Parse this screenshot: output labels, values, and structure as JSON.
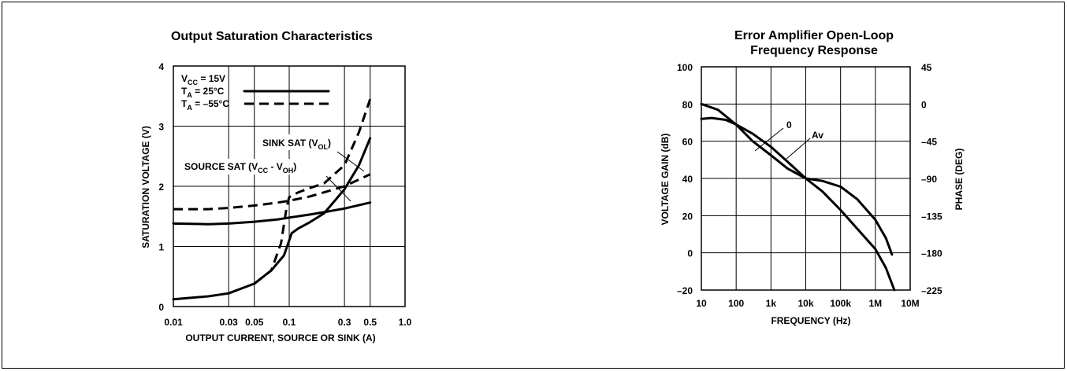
{
  "chart_data": [
    {
      "type": "line",
      "title": "Output Saturation Characteristics",
      "xlabel": "OUTPUT CURRENT, SOURCE OR SINK (A)",
      "ylabel": "SATURATION VOLTAGE (V)",
      "x_scale": "log",
      "xlim": [
        0.01,
        1.0
      ],
      "ylim": [
        0,
        4
      ],
      "x_ticks": [
        "0.01",
        "0.03",
        "0.05",
        "0.1",
        "0.3",
        "0.5",
        "1.0"
      ],
      "y_ticks": [
        "0",
        "1",
        "2",
        "3",
        "4"
      ],
      "legend": {
        "line1": "V",
        "line1_sub": "CC",
        "line1_rest": " = 15V",
        "line2": "T",
        "line2_sub": "A",
        "line2_rest": " = 25°C",
        "line3": "T",
        "line3_sub": "A",
        "line3_rest": " = –55°C"
      },
      "annotations": {
        "sink": "SINK SAT (V",
        "sink_sub": "OL",
        "sink_end": ")",
        "source": "SOURCE SAT (V",
        "source_sub1": "CC",
        "source_mid": " - V",
        "source_sub2": "OH",
        "source_end": ")"
      },
      "series": [
        {
          "style": "solid",
          "temp": "25°C",
          "curve": "source",
          "x": [
            0.01,
            0.02,
            0.03,
            0.05,
            0.08,
            0.1,
            0.15,
            0.2,
            0.3,
            0.5
          ],
          "y": [
            1.38,
            1.37,
            1.38,
            1.41,
            1.45,
            1.48,
            1.53,
            1.57,
            1.63,
            1.73
          ]
        },
        {
          "style": "dashed",
          "temp": "–55°C",
          "curve": "source",
          "x": [
            0.01,
            0.02,
            0.03,
            0.05,
            0.08,
            0.1,
            0.15,
            0.2,
            0.3,
            0.5
          ],
          "y": [
            1.62,
            1.62,
            1.64,
            1.68,
            1.73,
            1.76,
            1.83,
            1.9,
            2.0,
            2.2
          ]
        },
        {
          "style": "solid",
          "temp": "25°C",
          "curve": "sink",
          "x": [
            0.01,
            0.02,
            0.03,
            0.05,
            0.07,
            0.09,
            0.1,
            0.105,
            0.12,
            0.15,
            0.2,
            0.3,
            0.4,
            0.5
          ],
          "y": [
            0.12,
            0.17,
            0.22,
            0.38,
            0.6,
            0.85,
            1.1,
            1.22,
            1.3,
            1.4,
            1.55,
            1.95,
            2.35,
            2.8
          ]
        },
        {
          "style": "dashed",
          "temp": "–55°C",
          "curve": "sink",
          "x": [
            0.05,
            0.07,
            0.085,
            0.095,
            0.1,
            0.12,
            0.15,
            0.2,
            0.3,
            0.4,
            0.5
          ],
          "y": [
            0.38,
            0.6,
            1.05,
            1.65,
            1.82,
            1.9,
            1.97,
            2.05,
            2.35,
            2.9,
            3.45
          ]
        }
      ]
    },
    {
      "type": "line",
      "title": [
        "Error Amplifier Open-Loop",
        "Frequency Response"
      ],
      "xlabel": "FREQUENCY (Hz)",
      "ylabel": "VOLTAGE GAIN (dB)",
      "y2label": "PHASE (DEG)",
      "x_scale": "log",
      "xlim": [
        10,
        10000000
      ],
      "ylim": [
        -20,
        100
      ],
      "y2lim": [
        -225,
        45
      ],
      "x_ticks": [
        "10",
        "100",
        "1k",
        "10k",
        "100k",
        "1M",
        "10M"
      ],
      "y_ticks": [
        "–20",
        "0",
        "20",
        "40",
        "60",
        "80",
        "100"
      ],
      "y2_ticks": [
        "–225",
        "–180",
        "–135",
        "–90",
        "–45",
        "0",
        "45"
      ],
      "annotations": {
        "phase": "0",
        "gain": "Av"
      },
      "series": [
        {
          "name": "Av",
          "axis": "left",
          "x": [
            10,
            20,
            50,
            100,
            300,
            1000,
            3000,
            10000,
            30000,
            100000,
            300000,
            1000000,
            2000000,
            3500000
          ],
          "y": [
            72,
            72.5,
            71.5,
            69,
            64,
            57,
            49,
            40,
            33,
            23,
            13,
            2,
            -8,
            -20
          ]
        },
        {
          "name": "0",
          "axis": "right",
          "x": [
            10,
            30,
            100,
            300,
            1000,
            3000,
            10000,
            30000,
            100000,
            300000,
            1000000,
            2000000,
            3000000
          ],
          "y": [
            0,
            -7,
            -25,
            -45,
            -62,
            -78,
            -90,
            -93,
            -100,
            -115,
            -140,
            -162,
            -182
          ]
        }
      ]
    }
  ]
}
